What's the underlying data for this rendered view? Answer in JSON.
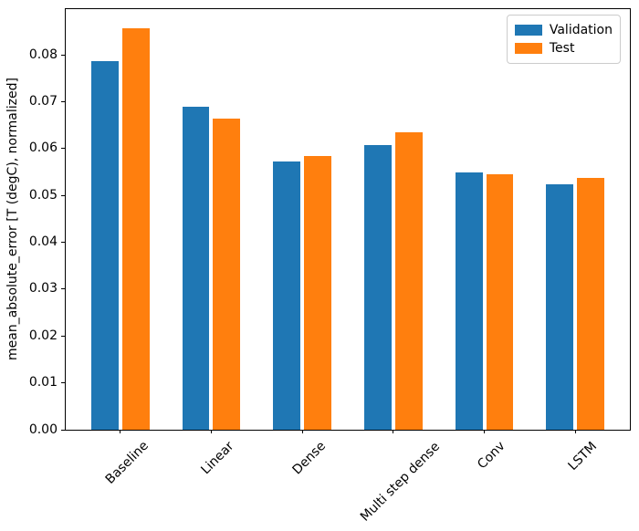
{
  "chart_data": {
    "type": "bar",
    "title": "",
    "xlabel": "",
    "ylabel": "mean_absolute_error [T (degC), normalized]",
    "categories": [
      "Baseline",
      "Linear",
      "Dense",
      "Multi step dense",
      "Conv",
      "LSTM"
    ],
    "series": [
      {
        "name": "Validation",
        "color": "#1f77b4",
        "values": [
          0.0787,
          0.0689,
          0.0572,
          0.0608,
          0.0549,
          0.0525
        ]
      },
      {
        "name": "Test",
        "color": "#ff7f0e",
        "values": [
          0.0857,
          0.0665,
          0.0585,
          0.0636,
          0.0545,
          0.0537
        ]
      }
    ],
    "ylim": [
      0,
      0.0898
    ],
    "yticks": [
      {
        "value": 0.0,
        "label": "0.00"
      },
      {
        "value": 0.01,
        "label": "0.01"
      },
      {
        "value": 0.02,
        "label": "0.02"
      },
      {
        "value": 0.03,
        "label": "0.03"
      },
      {
        "value": 0.04,
        "label": "0.04"
      },
      {
        "value": 0.05,
        "label": "0.05"
      },
      {
        "value": 0.06,
        "label": "0.06"
      },
      {
        "value": 0.07,
        "label": "0.07"
      },
      {
        "value": 0.08,
        "label": "0.08"
      }
    ],
    "xtick_rotation_deg": 45,
    "grid": false,
    "legend": {
      "position": "upper right",
      "entries": [
        "Validation",
        "Test"
      ]
    },
    "axis_color": "#000000",
    "text_color": "#000000",
    "background": "#ffffff"
  }
}
